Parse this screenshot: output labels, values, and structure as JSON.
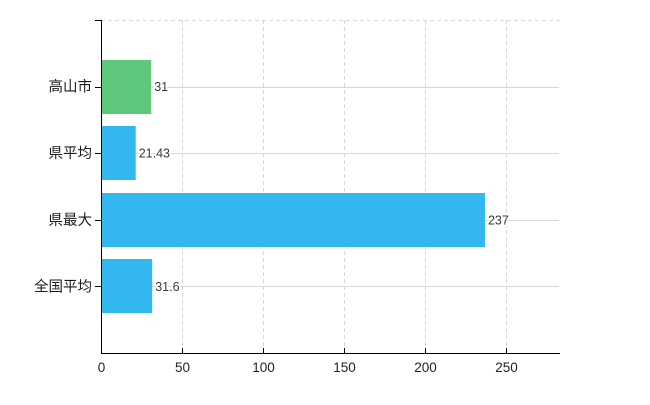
{
  "chart_data": {
    "type": "bar",
    "orientation": "horizontal",
    "title": "",
    "xlabel": "",
    "ylabel": "",
    "categories": [
      "高山市",
      "県平均",
      "県最大",
      "全国平均"
    ],
    "series": [
      {
        "name": "values",
        "values": [
          31,
          21.43,
          237,
          31.6
        ]
      }
    ],
    "value_labels": [
      "31",
      "21.43",
      "237",
      "31.6"
    ],
    "bar_colors": [
      "#5fc87c",
      "#33b7ef",
      "#33b7ef",
      "#33b7ef"
    ],
    "x_ticks": [
      {
        "value": 0,
        "label": "0"
      },
      {
        "value": 50,
        "label": "50"
      },
      {
        "value": 100,
        "label": "100"
      },
      {
        "value": 150,
        "label": "150"
      },
      {
        "value": 200,
        "label": "200"
      },
      {
        "value": 250,
        "label": "250"
      }
    ],
    "xlim": [
      0,
      283
    ],
    "grid": true,
    "legend": false,
    "colors": {
      "axis": "#000000",
      "gridline": "#d4d7d4",
      "category_label": "#1a1a1a",
      "tick_label": "#222222",
      "value_label": "#3a3a3a",
      "background": "#ffffff"
    }
  }
}
